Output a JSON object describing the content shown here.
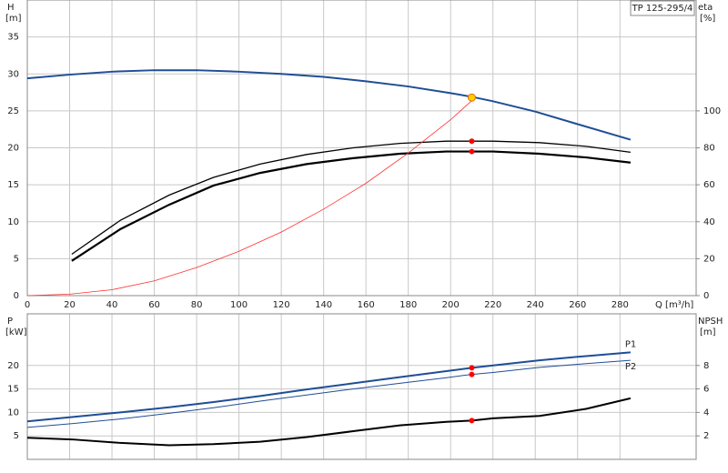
{
  "chart_data": [
    {
      "type": "line",
      "title": "TP 125-295/4",
      "ylabel": "H",
      "yunit": "[m]",
      "y2label": "eta",
      "y2unit": "[%]",
      "xlabel": "Q [m³/h]",
      "xlim": [
        0,
        316
      ],
      "xticks": [
        0,
        20,
        40,
        60,
        80,
        100,
        120,
        140,
        160,
        180,
        200,
        220,
        240,
        260,
        280
      ],
      "ylim": [
        0,
        40
      ],
      "yticks": [
        0,
        5,
        10,
        15,
        20,
        25,
        30,
        35
      ],
      "y2lim": [
        0,
        160
      ],
      "y2ticks": [
        0,
        20,
        40,
        60,
        80,
        100
      ],
      "grid": true,
      "series": [
        {
          "color": "#1f4e96",
          "width": 2,
          "x": [
            0,
            20,
            40,
            60,
            80,
            100,
            120,
            140,
            160,
            180,
            200,
            210,
            220,
            240,
            260,
            285
          ],
          "values": [
            29.4,
            29.9,
            30.3,
            30.5,
            30.5,
            30.3,
            30.0,
            29.6,
            29.0,
            28.3,
            27.4,
            26.9,
            26.3,
            24.9,
            23.2,
            21.1
          ]
        },
        {
          "color": "#000000",
          "width": 1.3,
          "axis": "y2",
          "x": [
            21,
            44,
            67,
            88,
            110,
            132,
            154,
            176,
            198,
            210,
            220,
            242,
            264,
            285
          ],
          "values": [
            22.4,
            40.8,
            54.4,
            64,
            71.2,
            76.4,
            80,
            82.4,
            83.6,
            83.6,
            83.6,
            82.8,
            80.8,
            77.6
          ]
        },
        {
          "color": "#000000",
          "width": 2.2,
          "axis": "y2",
          "x": [
            21,
            44,
            67,
            88,
            110,
            132,
            154,
            176,
            198,
            210,
            220,
            242,
            264,
            285
          ],
          "values": [
            18.8,
            36,
            49.2,
            59.6,
            66.4,
            71.2,
            74.4,
            76.8,
            78,
            78,
            78,
            76.8,
            74.8,
            72
          ]
        },
        {
          "color": "#ff3030",
          "width": 0.8,
          "x": [
            0,
            20,
            40,
            60,
            80,
            100,
            120,
            140,
            160,
            180,
            200,
            212
          ],
          "values": [
            0,
            0.2,
            0.8,
            2,
            3.8,
            6,
            8.6,
            11.7,
            15.2,
            19.3,
            23.8,
            26.9
          ]
        },
        {
          "color": "#ff0000",
          "marker": true,
          "axis": "y2",
          "x": [
            210,
            210
          ],
          "values": [
            83.6,
            78
          ]
        },
        {
          "color": "#ffcc00",
          "marker": true,
          "x": [
            210
          ],
          "values": [
            26.8
          ]
        }
      ]
    },
    {
      "type": "line",
      "ylabel": "P",
      "yunit": "[kW]",
      "y2label": "NPSH",
      "y2unit": "[m]",
      "xlim": [
        0,
        316
      ],
      "xticks": [
        0,
        20,
        40,
        60,
        80,
        100,
        120,
        140,
        160,
        180,
        200,
        220,
        240,
        260,
        280
      ],
      "ylim": [
        0,
        31
      ],
      "yticks": [
        5,
        10,
        15,
        20
      ],
      "y2lim": [
        0,
        12.4
      ],
      "y2ticks": [
        2,
        4,
        6,
        8
      ],
      "grid": true,
      "series": [
        {
          "name": "P1",
          "color": "#1f4e96",
          "width": 2,
          "x": [
            0,
            21,
            44,
            67,
            88,
            110,
            132,
            154,
            176,
            198,
            210,
            220,
            242,
            264,
            285
          ],
          "values": [
            8.1,
            9,
            10,
            11.1,
            12.2,
            13.5,
            14.9,
            16.2,
            17.5,
            18.8,
            19.5,
            20,
            21.1,
            22,
            22.8
          ]
        },
        {
          "name": "P2",
          "color": "#1f4e96",
          "width": 1,
          "x": [
            0,
            21,
            44,
            67,
            88,
            110,
            132,
            154,
            176,
            198,
            210,
            220,
            242,
            264,
            285
          ],
          "values": [
            6.8,
            7.6,
            8.6,
            9.8,
            11,
            12.4,
            13.7,
            15,
            16.2,
            17.4,
            18.1,
            18.5,
            19.6,
            20.4,
            21.1
          ]
        },
        {
          "color": "#000000",
          "width": 2,
          "axis": "y2",
          "x": [
            0,
            21,
            44,
            67,
            88,
            110,
            132,
            154,
            176,
            198,
            210,
            220,
            242,
            264,
            285
          ],
          "values": [
            1.84,
            1.7,
            1.4,
            1.2,
            1.3,
            1.5,
            1.9,
            2.4,
            2.9,
            3.2,
            3.3,
            3.5,
            3.7,
            4.3,
            5.2
          ]
        },
        {
          "color": "#ff0000",
          "marker": true,
          "x": [
            210,
            210
          ],
          "values": [
            19.5,
            18.1
          ]
        },
        {
          "color": "#ff0000",
          "marker": true,
          "axis": "y2",
          "x": [
            210
          ],
          "values": [
            3.3
          ]
        }
      ]
    }
  ]
}
